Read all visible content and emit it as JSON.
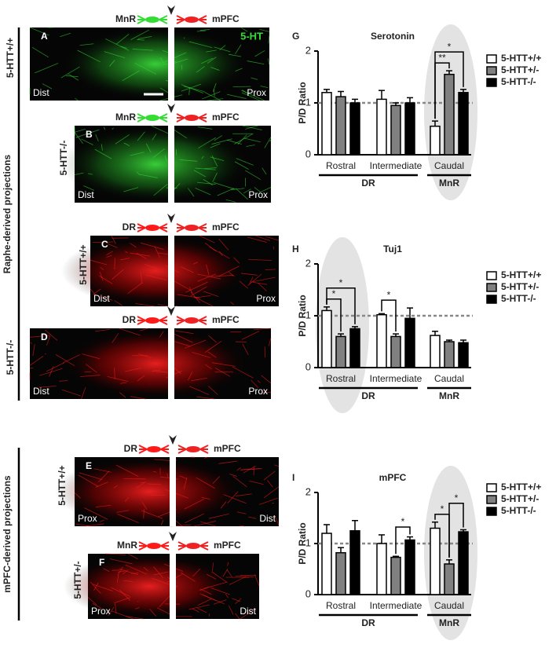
{
  "figure": {
    "groups": [
      {
        "label": "Raphe-derived projections"
      },
      {
        "label": "mPFC-derived projections"
      }
    ],
    "panels": [
      {
        "letter": "A",
        "genotype": "5-HTT+/+",
        "source": "MnR",
        "target": "mPFC",
        "left": "Dist",
        "right": "Prox",
        "stain": "5-HT",
        "color": "#33dd33"
      },
      {
        "letter": "B",
        "genotype": "5-HTT-/-",
        "source": "MnR",
        "target": "mPFC",
        "left": "Dist",
        "right": "Prox",
        "color": "#33dd33"
      },
      {
        "letter": "C",
        "genotype": "5-HTT+/+",
        "source": "DR",
        "target": "mPFC",
        "left": "Dist",
        "right": "Prox",
        "color": "#ff1a1a"
      },
      {
        "letter": "D",
        "genotype": "5-HTT-/-",
        "source": "DR",
        "target": "mPFC",
        "left": "Dist",
        "right": "Prox",
        "color": "#ff1a1a"
      },
      {
        "letter": "E",
        "genotype": "5-HTT+/+",
        "source": "DR",
        "target": "mPFC",
        "left": "Prox",
        "right": "Dist",
        "color": "#ff1a1a"
      },
      {
        "letter": "F",
        "genotype": "5-HTT+/-",
        "source": "MnR",
        "target": "mPFC",
        "left": "Prox",
        "right": "Dist",
        "color": "#ff1a1a"
      }
    ]
  },
  "chart_data": [
    {
      "type": "bar",
      "panel": "G",
      "title": "Serotonin",
      "ylabel": "P/D Ratio",
      "categories": [
        "Rostral",
        "Intermediate",
        "Caudal"
      ],
      "regions": [
        {
          "label": "DR",
          "categories": [
            "Rostral",
            "Intermediate"
          ]
        },
        {
          "label": "MnR",
          "categories": [
            "Caudal"
          ]
        }
      ],
      "highlight": "Caudal",
      "series": [
        {
          "name": "5-HTT+/+",
          "color": "#ffffff",
          "values": [
            1.2,
            1.07,
            0.55
          ],
          "errors": [
            0.06,
            0.17,
            0.1
          ]
        },
        {
          "name": "5-HTT+/-",
          "color": "#808080",
          "values": [
            1.12,
            0.95,
            1.55
          ],
          "errors": [
            0.1,
            0.05,
            0.07
          ]
        },
        {
          "name": "5-HTT-/-",
          "color": "#000000",
          "values": [
            1.0,
            1.0,
            1.2
          ],
          "errors": [
            0.07,
            0.1,
            0.06
          ]
        }
      ],
      "ylim": [
        0,
        2
      ],
      "yticks": [
        0,
        1,
        2
      ],
      "reference_line": 1,
      "significance": [
        {
          "label": "**",
          "category": "Caudal",
          "pair": [
            "5-HTT+/+",
            "5-HTT+/-"
          ]
        },
        {
          "label": "*",
          "category": "Caudal",
          "pair": [
            "5-HTT+/+",
            "5-HTT-/-"
          ]
        }
      ]
    },
    {
      "type": "bar",
      "panel": "H",
      "title": "Tuj1",
      "ylabel": "P/D Ratio",
      "categories": [
        "Rostral",
        "Intermediate",
        "Caudal"
      ],
      "regions": [
        {
          "label": "DR",
          "categories": [
            "Rostral",
            "Intermediate"
          ]
        },
        {
          "label": "MnR",
          "categories": [
            "Caudal"
          ]
        }
      ],
      "highlight": "Rostral",
      "series": [
        {
          "name": "5-HTT+/+",
          "color": "#ffffff",
          "values": [
            1.1,
            1.02,
            0.62
          ],
          "errors": [
            0.07,
            0.02,
            0.08
          ]
        },
        {
          "name": "5-HTT+/-",
          "color": "#808080",
          "values": [
            0.6,
            0.6,
            0.5
          ],
          "errors": [
            0.05,
            0.05,
            0.03
          ]
        },
        {
          "name": "5-HTT-/-",
          "color": "#000000",
          "values": [
            0.75,
            0.95,
            0.48
          ],
          "errors": [
            0.04,
            0.2,
            0.05
          ]
        }
      ],
      "ylim": [
        0,
        2
      ],
      "yticks": [
        0,
        1,
        2
      ],
      "reference_line": 1,
      "significance": [
        {
          "label": "*",
          "category": "Rostral",
          "pair": [
            "5-HTT+/+",
            "5-HTT+/-"
          ]
        },
        {
          "label": "*",
          "category": "Rostral",
          "pair": [
            "5-HTT+/+",
            "5-HTT-/-"
          ]
        },
        {
          "label": "*",
          "category": "Intermediate",
          "pair": [
            "5-HTT+/+",
            "5-HTT+/-"
          ]
        }
      ]
    },
    {
      "type": "bar",
      "panel": "I",
      "title": "mPFC",
      "ylabel": "P/D Ratio",
      "categories": [
        "Rostral",
        "Intermediate",
        "Caudal"
      ],
      "regions": [
        {
          "label": "DR",
          "categories": [
            "Rostral",
            "Intermediate"
          ]
        },
        {
          "label": "MnR",
          "categories": [
            "Caudal"
          ]
        }
      ],
      "highlight": "Caudal",
      "series": [
        {
          "name": "5-HTT+/+",
          "color": "#ffffff",
          "values": [
            1.2,
            1.0,
            1.3
          ],
          "errors": [
            0.17,
            0.17,
            0.12
          ]
        },
        {
          "name": "5-HTT+/-",
          "color": "#808080",
          "values": [
            0.82,
            0.73,
            0.6
          ],
          "errors": [
            0.1,
            0.02,
            0.08
          ]
        },
        {
          "name": "5-HTT-/-",
          "color": "#000000",
          "values": [
            1.25,
            1.07,
            1.23
          ],
          "errors": [
            0.2,
            0.06,
            0.04
          ]
        }
      ],
      "ylim": [
        0,
        2
      ],
      "yticks": [
        0,
        1,
        2
      ],
      "reference_line": 1,
      "significance": [
        {
          "label": "*",
          "category": "Intermediate",
          "pair": [
            "5-HTT+/-",
            "5-HTT-/-"
          ]
        },
        {
          "label": "*",
          "category": "Caudal",
          "pair": [
            "5-HTT+/+",
            "5-HTT+/-"
          ]
        },
        {
          "label": "*",
          "category": "Caudal",
          "pair": [
            "5-HTT+/-",
            "5-HTT-/-"
          ]
        }
      ]
    }
  ]
}
